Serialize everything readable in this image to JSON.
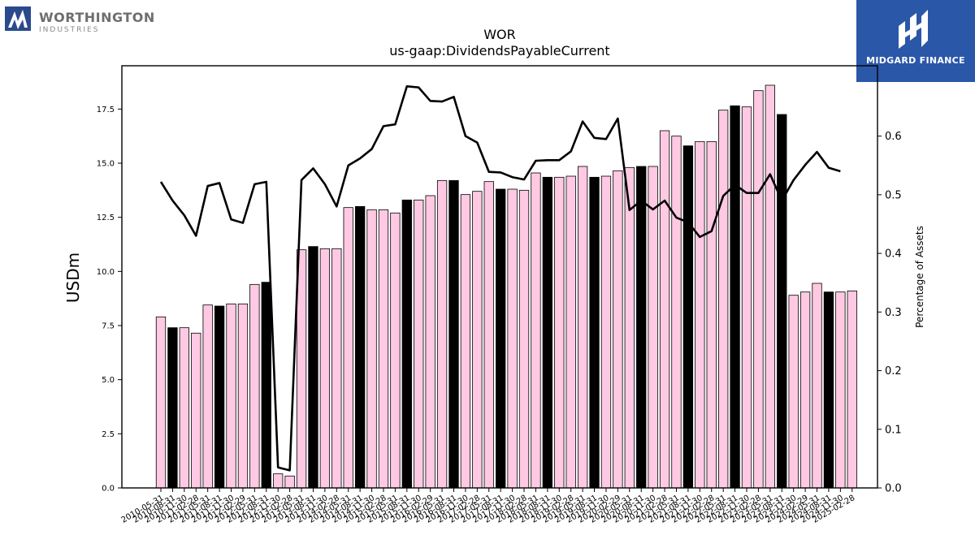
{
  "branding": {
    "left_name": "WORTHINGTON",
    "left_sub": "INDUSTRIES",
    "right_name": "MIDGARD FINANCE",
    "right_color": "#2a57a8"
  },
  "chart_data": {
    "type": "bar",
    "title": "WOR",
    "subtitle": "us-gaap:DividendsPayableCurrent",
    "ylabel": "USDm",
    "y2label": "Percentage of Assets",
    "ylim": [
      0,
      19.5
    ],
    "y2lim": [
      0,
      0.72
    ],
    "yticks": [
      "0.0",
      "2.5",
      "5.0",
      "7.5",
      "10.0",
      "12.5",
      "15.0",
      "17.5"
    ],
    "y2ticks": [
      "0.0",
      "0.1",
      "0.2",
      "0.3",
      "0.4",
      "0.5",
      "0.6"
    ],
    "grid": false,
    "colors": {
      "bar_default": "#ffc9e3",
      "bar_highlight": "#000000",
      "line": "#000000"
    },
    "categories": [
      "2010-05-31",
      "2010-08-31",
      "2010-11-30",
      "2011-02-28",
      "2011-05-31",
      "2011-08-31",
      "2011-11-30",
      "2012-02-29",
      "2012-05-31",
      "2012-08-31",
      "2012-11-30",
      "2013-02-28",
      "2013-05-31",
      "2013-08-31",
      "2013-11-30",
      "2014-02-28",
      "2014-05-31",
      "2014-08-31",
      "2014-11-30",
      "2015-02-28",
      "2015-05-31",
      "2015-08-31",
      "2015-11-30",
      "2016-02-29",
      "2016-05-31",
      "2016-08-31",
      "2016-11-30",
      "2017-02-28",
      "2017-05-31",
      "2017-08-31",
      "2017-11-30",
      "2018-02-28",
      "2018-05-31",
      "2018-08-31",
      "2018-11-30",
      "2019-02-28",
      "2019-05-31",
      "2019-08-31",
      "2019-11-30",
      "2020-02-29",
      "2020-05-31",
      "2020-08-31",
      "2020-11-30",
      "2021-02-28",
      "2021-05-31",
      "2021-08-31",
      "2021-11-30",
      "2022-02-28",
      "2022-05-31",
      "2022-08-31",
      "2022-11-30",
      "2023-02-28",
      "2023-05-31",
      "2023-08-31",
      "2023-11-30",
      "2024-02-29",
      "2024-05-31",
      "2024-08-31",
      "2024-11-30",
      "2025-02-28"
    ],
    "values": [
      7.9,
      7.4,
      7.4,
      7.15,
      8.45,
      8.4,
      8.5,
      8.5,
      9.4,
      9.5,
      0.65,
      0.55,
      11.0,
      11.15,
      11.05,
      11.05,
      12.95,
      13.0,
      12.85,
      12.85,
      12.7,
      13.3,
      13.3,
      13.5,
      14.2,
      14.2,
      13.55,
      13.7,
      14.15,
      13.8,
      13.8,
      13.75,
      14.55,
      14.35,
      14.35,
      14.4,
      14.85,
      14.35,
      14.4,
      14.65,
      14.8,
      14.85,
      14.85,
      16.5,
      16.25,
      15.8,
      16.0,
      16.0,
      17.45,
      17.65,
      17.6,
      18.35,
      18.6,
      17.25,
      8.9,
      9.05,
      9.45,
      9.05,
      9.05,
      9.1
    ],
    "highlight": [
      false,
      true,
      false,
      false,
      false,
      true,
      false,
      false,
      false,
      true,
      false,
      false,
      false,
      true,
      false,
      false,
      false,
      true,
      false,
      false,
      false,
      true,
      false,
      false,
      false,
      true,
      false,
      false,
      false,
      true,
      false,
      false,
      false,
      true,
      false,
      false,
      false,
      true,
      false,
      false,
      false,
      true,
      false,
      false,
      false,
      true,
      false,
      false,
      false,
      true,
      false,
      false,
      false,
      true,
      false,
      false,
      false,
      true,
      false,
      false
    ],
    "pct_of_assets": [
      0.522,
      0.49,
      0.465,
      0.43,
      0.515,
      0.52,
      0.458,
      0.452,
      0.518,
      0.522,
      0.035,
      0.03,
      0.525,
      0.545,
      0.518,
      0.48,
      0.55,
      0.562,
      0.578,
      0.617,
      0.62,
      0.685,
      0.683,
      0.66,
      0.659,
      0.667,
      0.6,
      0.589,
      0.539,
      0.538,
      0.53,
      0.526,
      0.558,
      0.559,
      0.559,
      0.574,
      0.625,
      0.597,
      0.595,
      0.63,
      0.474,
      0.49,
      0.475,
      0.49,
      0.461,
      0.453,
      0.428,
      0.438,
      0.498,
      0.517,
      0.503,
      0.503,
      0.535,
      0.49,
      0.525,
      0.551,
      0.573,
      0.546,
      0.54,
      null
    ]
  }
}
